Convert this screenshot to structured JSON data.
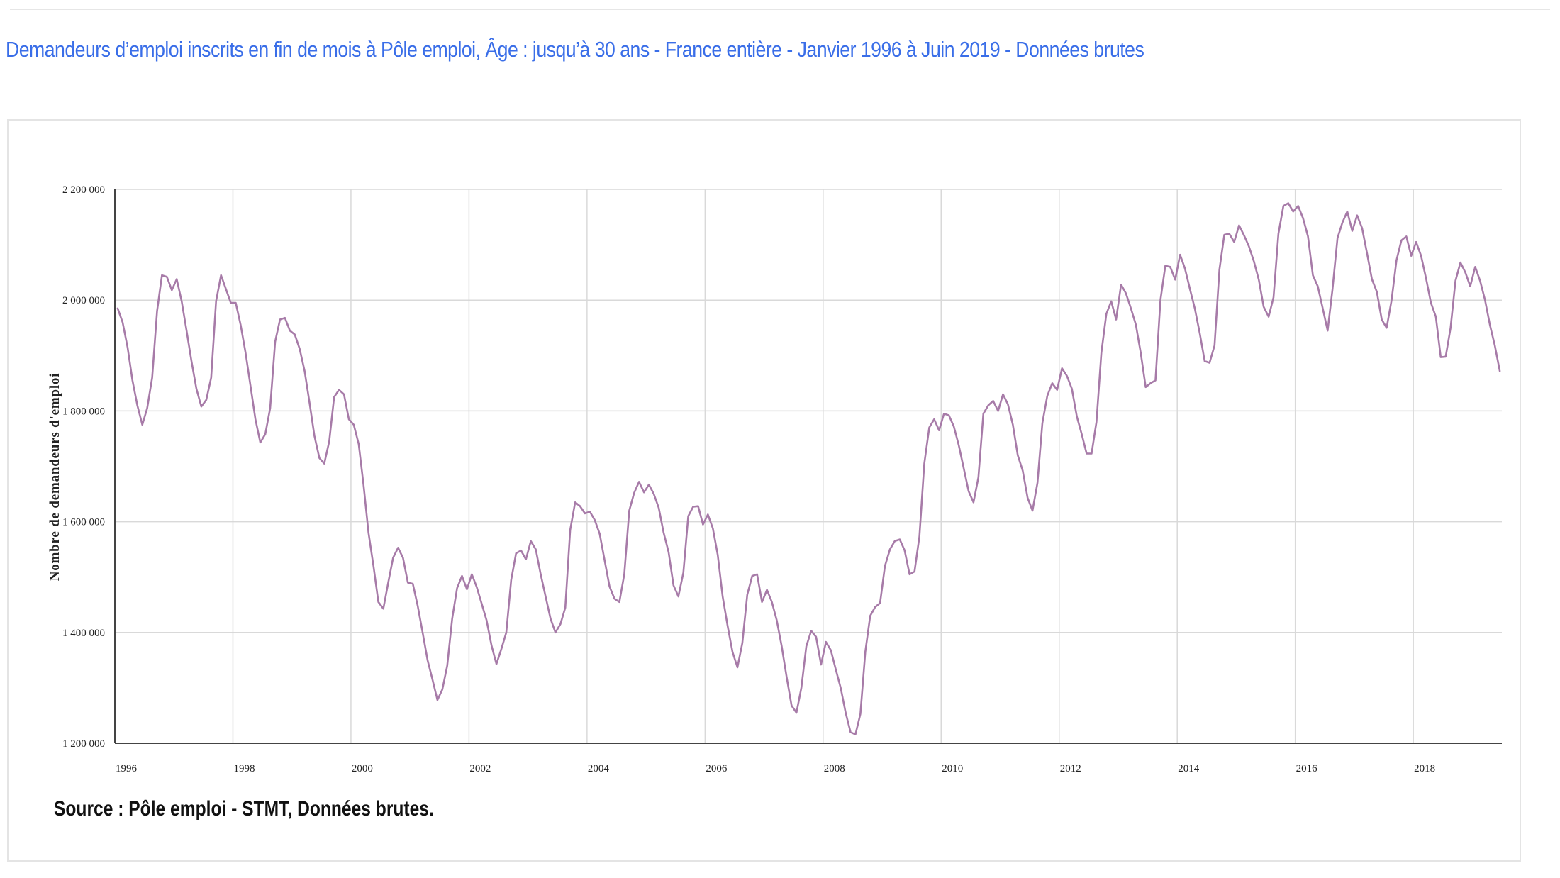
{
  "title": "Demandeurs d’emploi inscrits en fin de mois à Pôle emploi, Âge : jusqu’à 30 ans - France entière - Janvier 1996 à Juin 2019 - Données brutes",
  "source": "Source : Pôle emploi - STMT, Données brutes.",
  "colors": {
    "title": "#3a6ee8",
    "series": "#a77ba8",
    "grid": "#d9d9d9",
    "axis": "#444444"
  },
  "chart_data": {
    "type": "line",
    "title": "",
    "xlabel": "",
    "ylabel": "Nombre de demandeurs d'emploi",
    "x_start": "1996-01",
    "x_end": "2019-06",
    "frequency": "monthly",
    "xlim": [
      1996,
      2019.5
    ],
    "ylim": [
      1200000,
      2200000
    ],
    "grid": true,
    "legend": "none",
    "y_ticks": [
      1200000,
      1400000,
      1600000,
      1800000,
      2000000,
      2200000
    ],
    "y_tick_labels": [
      "1 200 000",
      "1 400 000",
      "1 600 000",
      "1 800 000",
      "2 000 000",
      "2 200 000"
    ],
    "x_ticks": [
      1996,
      1998,
      2000,
      2002,
      2004,
      2006,
      2008,
      2010,
      2012,
      2014,
      2016,
      2018
    ],
    "x_tick_labels": [
      "1996",
      "1998",
      "2000",
      "2002",
      "2004",
      "2006",
      "2008",
      "2010",
      "2012",
      "2014",
      "2016",
      "2018"
    ],
    "series": [
      {
        "values": [
          1985000,
          1960000,
          1915000,
          1855000,
          1810000,
          1775000,
          1805000,
          1860000,
          1980000,
          2045000,
          2042000,
          2018000,
          2038000,
          1998000,
          1945000,
          1890000,
          1840000,
          1808000,
          1820000,
          1860000,
          1998000,
          2045000,
          2020000,
          1995000,
          1995000,
          1955000,
          1905000,
          1845000,
          1785000,
          1743000,
          1758000,
          1805000,
          1925000,
          1965000,
          1968000,
          1945000,
          1938000,
          1912000,
          1872000,
          1815000,
          1755000,
          1715000,
          1705000,
          1745000,
          1825000,
          1838000,
          1830000,
          1785000,
          1775000,
          1740000,
          1665000,
          1580000,
          1520000,
          1455000,
          1443000,
          1490000,
          1535000,
          1553000,
          1535000,
          1490000,
          1488000,
          1448000,
          1400000,
          1350000,
          1315000,
          1278000,
          1297000,
          1340000,
          1425000,
          1480000,
          1502000,
          1478000,
          1505000,
          1482000,
          1452000,
          1422000,
          1377000,
          1343000,
          1370000,
          1400000,
          1495000,
          1543000,
          1548000,
          1532000,
          1565000,
          1550000,
          1505000,
          1465000,
          1425000,
          1400000,
          1415000,
          1445000,
          1585000,
          1635000,
          1628000,
          1615000,
          1618000,
          1603000,
          1578000,
          1530000,
          1483000,
          1461000,
          1455000,
          1505000,
          1620000,
          1652000,
          1672000,
          1653000,
          1667000,
          1650000,
          1625000,
          1580000,
          1545000,
          1485000,
          1465000,
          1508000,
          1610000,
          1627000,
          1628000,
          1595000,
          1613000,
          1588000,
          1540000,
          1465000,
          1412000,
          1365000,
          1337000,
          1381000,
          1468000,
          1502000,
          1505000,
          1455000,
          1477000,
          1455000,
          1422000,
          1375000,
          1320000,
          1268000,
          1255000,
          1300000,
          1375000,
          1403000,
          1392000,
          1342000,
          1383000,
          1368000,
          1333000,
          1300000,
          1255000,
          1220000,
          1216000,
          1253000,
          1365000,
          1430000,
          1446000,
          1453000,
          1520000,
          1550000,
          1565000,
          1568000,
          1548000,
          1505000,
          1510000,
          1573000,
          1705000,
          1770000,
          1785000,
          1765000,
          1795000,
          1792000,
          1772000,
          1738000,
          1697000,
          1655000,
          1635000,
          1680000,
          1795000,
          1810000,
          1818000,
          1800000,
          1830000,
          1812000,
          1775000,
          1720000,
          1692000,
          1643000,
          1620000,
          1670000,
          1778000,
          1827000,
          1850000,
          1838000,
          1877000,
          1863000,
          1840000,
          1790000,
          1758000,
          1723000,
          1723000,
          1780000,
          1905000,
          1975000,
          1998000,
          1965000,
          2028000,
          2012000,
          1985000,
          1956000,
          1905000,
          1843000,
          1850000,
          1855000,
          2000000,
          2062000,
          2060000,
          2037000,
          2082000,
          2057000,
          2020000,
          1985000,
          1940000,
          1890000,
          1887000,
          1918000,
          2055000,
          2118000,
          2120000,
          2105000,
          2135000,
          2117000,
          2097000,
          2070000,
          2037000,
          1988000,
          1970000,
          2005000,
          2120000,
          2170000,
          2175000,
          2160000,
          2170000,
          2148000,
          2115000,
          2045000,
          2025000,
          1985000,
          1945000,
          2020000,
          2112000,
          2140000,
          2160000,
          2125000,
          2153000,
          2130000,
          2085000,
          2038000,
          2015000,
          1965000,
          1950000,
          2000000,
          2072000,
          2108000,
          2115000,
          2080000,
          2105000,
          2080000,
          2040000,
          1995000,
          1970000,
          1897000,
          1898000,
          1950000,
          2035000,
          2068000,
          2050000,
          2025000,
          2060000,
          2035000,
          2000000,
          1955000,
          1918000,
          1872000
        ]
      }
    ]
  }
}
